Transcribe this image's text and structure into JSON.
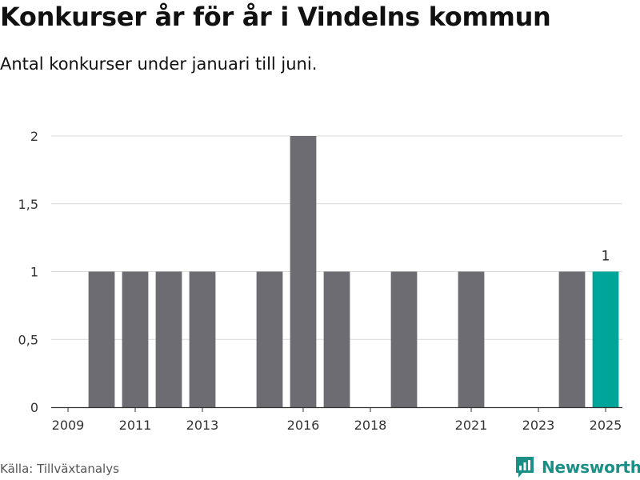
{
  "header": {
    "title": "Konkurser år för år i Vindelns kommun",
    "subtitle": "Antal konkurser under januari till juni."
  },
  "footer": {
    "source": "Källa: Tillväxtanalys",
    "brand": "Newsworthy",
    "brand_icon": "newsworthy-chart-icon"
  },
  "colors": {
    "bar": "#6d6c72",
    "highlight": "#00a59a",
    "grid": "#d9d9d9",
    "brand": "#1a8f86"
  },
  "chart_data": {
    "type": "bar",
    "x": [
      2009,
      2010,
      2011,
      2012,
      2013,
      2014,
      2015,
      2016,
      2017,
      2018,
      2019,
      2020,
      2021,
      2022,
      2023,
      2024,
      2025
    ],
    "values": [
      0,
      1,
      1,
      1,
      1,
      0,
      1,
      2,
      1,
      0,
      1,
      0,
      1,
      0,
      0,
      1,
      1
    ],
    "x_ticks": [
      "2009",
      "2011",
      "2013",
      "2016",
      "2018",
      "2021",
      "2023",
      "2025"
    ],
    "y_ticks": [
      {
        "value": 0,
        "label": "0"
      },
      {
        "value": 0.5,
        "label": "0,5"
      },
      {
        "value": 1,
        "label": "1"
      },
      {
        "value": 1.5,
        "label": "1,5"
      },
      {
        "value": 2,
        "label": "2"
      }
    ],
    "ylim": [
      0,
      2
    ],
    "highlight_x": 2025,
    "annotations": [
      {
        "x": 2025,
        "label": "1"
      }
    ],
    "grid": true,
    "title": "Konkurser år för år i Vindelns kommun",
    "subtitle": "Antal konkurser under januari till juni.",
    "xlabel": "",
    "ylabel": ""
  }
}
